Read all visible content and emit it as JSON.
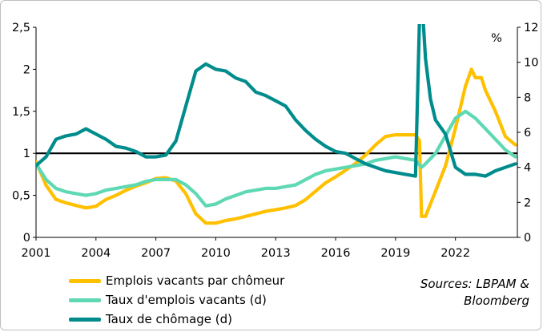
{
  "chart_data": {
    "type": "line",
    "x_ticks": [
      "2001",
      "2004",
      "2007",
      "2010",
      "2013",
      "2016",
      "2019",
      "2022"
    ],
    "xlim": [
      2001,
      2025.1
    ],
    "left_axis": {
      "ylim": [
        0,
        2.5
      ],
      "ticks": [
        "0",
        "0,5",
        "1",
        "1,5",
        "2",
        "2,5"
      ],
      "tick_values": [
        0,
        0.5,
        1,
        1.5,
        2,
        2.5
      ]
    },
    "right_axis": {
      "unit": "%",
      "ylim": [
        0,
        12
      ],
      "ticks": [
        "0",
        "2",
        "4",
        "6",
        "8",
        "10",
        "12"
      ],
      "tick_values": [
        0,
        2,
        4,
        6,
        8,
        10,
        12
      ]
    },
    "reference_line": 1,
    "grid": false,
    "legend_position": "bottom-left",
    "series": [
      {
        "name": "Emplois vacants par chômeur",
        "axis": "left",
        "color": "#ffc000",
        "points": [
          [
            2001.0,
            0.9
          ],
          [
            2001.5,
            0.62
          ],
          [
            2002.0,
            0.45
          ],
          [
            2002.5,
            0.41
          ],
          [
            2003.0,
            0.38
          ],
          [
            2003.5,
            0.35
          ],
          [
            2004.0,
            0.37
          ],
          [
            2004.5,
            0.45
          ],
          [
            2005.0,
            0.5
          ],
          [
            2005.5,
            0.56
          ],
          [
            2006.0,
            0.61
          ],
          [
            2006.5,
            0.65
          ],
          [
            2007.0,
            0.7
          ],
          [
            2007.5,
            0.71
          ],
          [
            2008.0,
            0.67
          ],
          [
            2008.5,
            0.52
          ],
          [
            2009.0,
            0.28
          ],
          [
            2009.5,
            0.17
          ],
          [
            2010.0,
            0.17
          ],
          [
            2010.5,
            0.2
          ],
          [
            2011.0,
            0.22
          ],
          [
            2011.5,
            0.25
          ],
          [
            2012.0,
            0.28
          ],
          [
            2012.5,
            0.31
          ],
          [
            2013.0,
            0.33
          ],
          [
            2013.5,
            0.35
          ],
          [
            2014.0,
            0.38
          ],
          [
            2014.5,
            0.45
          ],
          [
            2015.0,
            0.55
          ],
          [
            2015.5,
            0.65
          ],
          [
            2016.0,
            0.72
          ],
          [
            2016.5,
            0.8
          ],
          [
            2017.0,
            0.88
          ],
          [
            2017.5,
            0.98
          ],
          [
            2018.0,
            1.1
          ],
          [
            2018.5,
            1.2
          ],
          [
            2019.0,
            1.22
          ],
          [
            2019.5,
            1.22
          ],
          [
            2020.0,
            1.22
          ],
          [
            2020.2,
            1.15
          ],
          [
            2020.3,
            0.25
          ],
          [
            2020.5,
            0.25
          ],
          [
            2021.0,
            0.55
          ],
          [
            2021.5,
            0.85
          ],
          [
            2022.0,
            1.3
          ],
          [
            2022.5,
            1.8
          ],
          [
            2022.8,
            2.0
          ],
          [
            2023.0,
            1.9
          ],
          [
            2023.3,
            1.9
          ],
          [
            2023.5,
            1.75
          ],
          [
            2024.0,
            1.5
          ],
          [
            2024.5,
            1.2
          ],
          [
            2025.0,
            1.1
          ]
        ]
      },
      {
        "name": "Taux d'emplois vacants (d)",
        "axis": "right",
        "color": "#5fd8b4",
        "points": [
          [
            2001.0,
            4.2
          ],
          [
            2001.5,
            3.3
          ],
          [
            2002.0,
            2.8
          ],
          [
            2002.5,
            2.6
          ],
          [
            2003.0,
            2.5
          ],
          [
            2003.5,
            2.4
          ],
          [
            2004.0,
            2.5
          ],
          [
            2004.5,
            2.7
          ],
          [
            2005.0,
            2.8
          ],
          [
            2005.5,
            2.9
          ],
          [
            2006.0,
            3.0
          ],
          [
            2006.5,
            3.2
          ],
          [
            2007.0,
            3.3
          ],
          [
            2007.5,
            3.3
          ],
          [
            2008.0,
            3.3
          ],
          [
            2008.5,
            3.0
          ],
          [
            2009.0,
            2.5
          ],
          [
            2009.5,
            1.8
          ],
          [
            2010.0,
            1.9
          ],
          [
            2010.5,
            2.2
          ],
          [
            2011.0,
            2.4
          ],
          [
            2011.5,
            2.6
          ],
          [
            2012.0,
            2.7
          ],
          [
            2012.5,
            2.8
          ],
          [
            2013.0,
            2.8
          ],
          [
            2013.5,
            2.9
          ],
          [
            2014.0,
            3.0
          ],
          [
            2014.5,
            3.3
          ],
          [
            2015.0,
            3.6
          ],
          [
            2015.5,
            3.8
          ],
          [
            2016.0,
            3.9
          ],
          [
            2016.5,
            4.0
          ],
          [
            2017.0,
            4.1
          ],
          [
            2017.5,
            4.2
          ],
          [
            2018.0,
            4.4
          ],
          [
            2018.5,
            4.5
          ],
          [
            2019.0,
            4.6
          ],
          [
            2019.5,
            4.5
          ],
          [
            2020.0,
            4.4
          ],
          [
            2020.3,
            4.0
          ],
          [
            2020.5,
            4.2
          ],
          [
            2021.0,
            4.8
          ],
          [
            2021.5,
            5.8
          ],
          [
            2022.0,
            6.8
          ],
          [
            2022.5,
            7.2
          ],
          [
            2023.0,
            6.8
          ],
          [
            2023.5,
            6.2
          ],
          [
            2024.0,
            5.6
          ],
          [
            2024.5,
            5.0
          ],
          [
            2025.0,
            4.6
          ]
        ]
      },
      {
        "name": "Taux de chômage (d)",
        "axis": "right",
        "color": "#008c8c",
        "points": [
          [
            2001.0,
            4.1
          ],
          [
            2001.5,
            4.6
          ],
          [
            2002.0,
            5.6
          ],
          [
            2002.5,
            5.8
          ],
          [
            2003.0,
            5.9
          ],
          [
            2003.5,
            6.2
          ],
          [
            2004.0,
            5.9
          ],
          [
            2004.5,
            5.6
          ],
          [
            2005.0,
            5.2
          ],
          [
            2005.5,
            5.1
          ],
          [
            2006.0,
            4.9
          ],
          [
            2006.5,
            4.6
          ],
          [
            2007.0,
            4.6
          ],
          [
            2007.5,
            4.7
          ],
          [
            2008.0,
            5.5
          ],
          [
            2008.5,
            7.5
          ],
          [
            2009.0,
            9.5
          ],
          [
            2009.5,
            9.9
          ],
          [
            2010.0,
            9.6
          ],
          [
            2010.5,
            9.5
          ],
          [
            2011.0,
            9.1
          ],
          [
            2011.5,
            8.9
          ],
          [
            2012.0,
            8.3
          ],
          [
            2012.5,
            8.1
          ],
          [
            2013.0,
            7.8
          ],
          [
            2013.5,
            7.5
          ],
          [
            2014.0,
            6.7
          ],
          [
            2014.5,
            6.1
          ],
          [
            2015.0,
            5.6
          ],
          [
            2015.5,
            5.2
          ],
          [
            2016.0,
            4.9
          ],
          [
            2016.5,
            4.8
          ],
          [
            2017.0,
            4.5
          ],
          [
            2017.5,
            4.2
          ],
          [
            2018.0,
            4.0
          ],
          [
            2018.5,
            3.8
          ],
          [
            2019.0,
            3.7
          ],
          [
            2019.5,
            3.6
          ],
          [
            2020.0,
            3.5
          ],
          [
            2020.25,
            14.8
          ],
          [
            2020.5,
            10.2
          ],
          [
            2020.75,
            7.9
          ],
          [
            2021.0,
            6.7
          ],
          [
            2021.5,
            5.9
          ],
          [
            2022.0,
            4.0
          ],
          [
            2022.5,
            3.6
          ],
          [
            2023.0,
            3.6
          ],
          [
            2023.5,
            3.5
          ],
          [
            2024.0,
            3.8
          ],
          [
            2024.5,
            4.0
          ],
          [
            2025.0,
            4.2
          ]
        ]
      }
    ]
  },
  "legend": [
    {
      "label": "Emplois vacants par chômeur",
      "color": "#ffc000"
    },
    {
      "label": "Taux d'emplois vacants (d)",
      "color": "#5fd8b4"
    },
    {
      "label": "Taux de chômage (d)",
      "color": "#008c8c"
    }
  ],
  "source": {
    "line1": "Sources: LBPAM &",
    "line2": "Bloomberg"
  }
}
